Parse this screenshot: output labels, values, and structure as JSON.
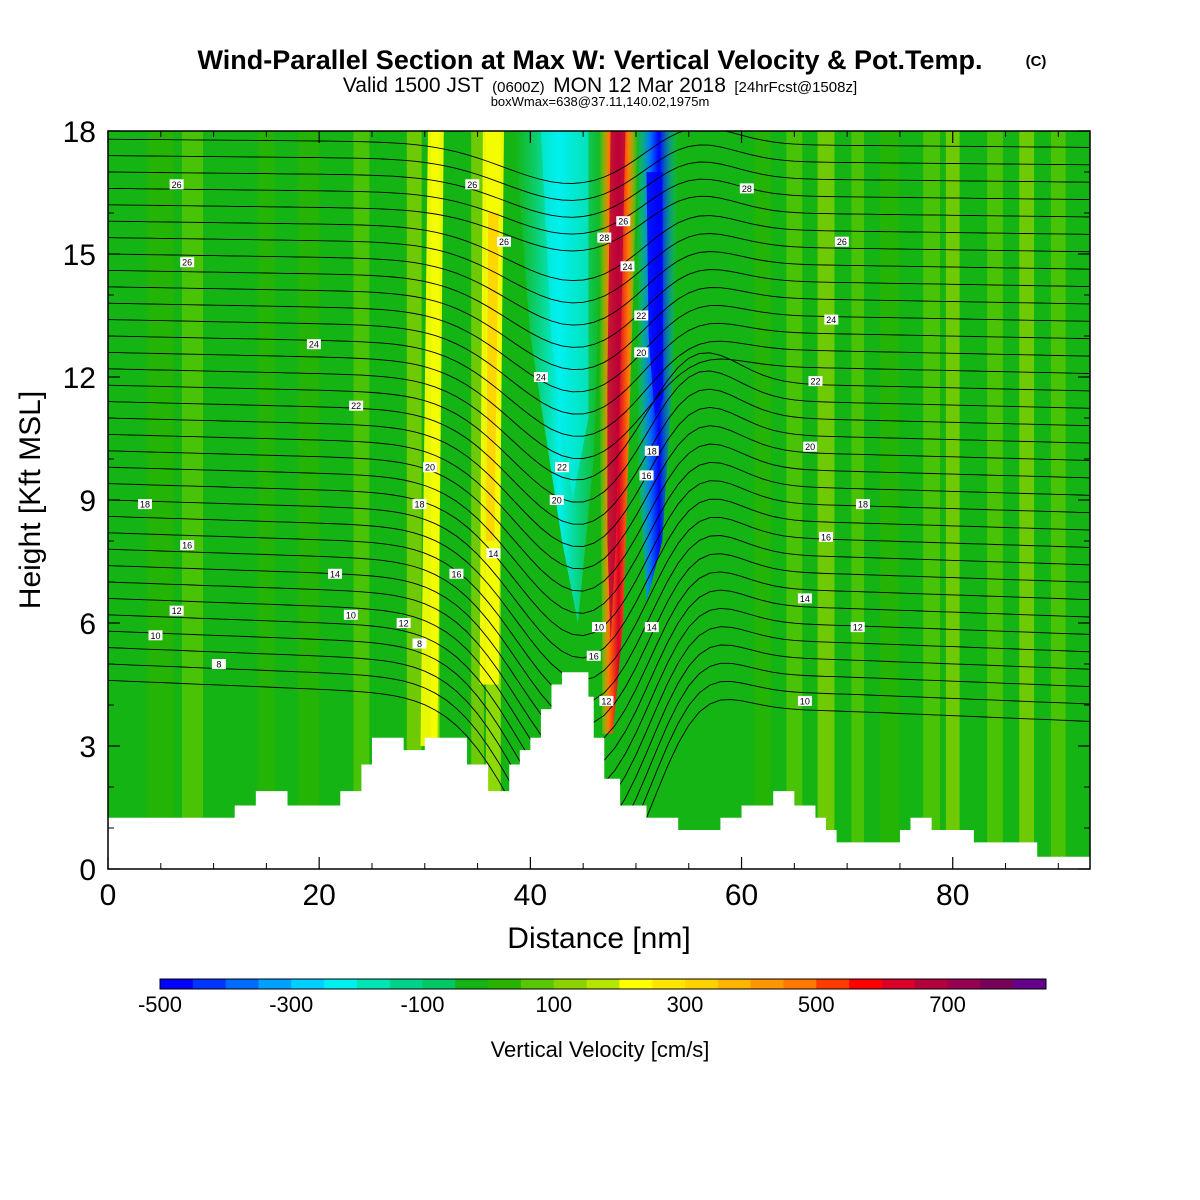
{
  "title": {
    "main": "Wind-Parallel Section at Max W: Vertical Velocity & Pot.Temp.",
    "copyright": "(C)",
    "valid_prefix": "Valid 1500 JST",
    "valid_utc": "(0600Z)",
    "valid_date": "MON 12 Mar 2018",
    "forecast": "[24hrFcst@1508z]",
    "box_max": "boxWmax=638@37.11,140.02,1975m"
  },
  "colorbar": {
    "label": "Vertical Velocity [cm/s]",
    "tick_labels": [
      "-500",
      "-300",
      "-100",
      "100",
      "300",
      "500",
      "700"
    ],
    "min": -500,
    "max": 850,
    "step": 50,
    "colors": [
      "#0000ff",
      "#0035ff",
      "#006bff",
      "#00a0ff",
      "#00d0ff",
      "#00f0f0",
      "#00e6b4",
      "#00d28c",
      "#00c864",
      "#14b414",
      "#28b400",
      "#5ac800",
      "#8cd200",
      "#b4e600",
      "#ffff00",
      "#ffe600",
      "#ffd200",
      "#ffb400",
      "#ff9600",
      "#ff7800",
      "#ff3c00",
      "#ff0000",
      "#dc0028",
      "#b4003c",
      "#960050",
      "#78005a",
      "#64008c"
    ]
  },
  "chart_data": {
    "type": "heatmap",
    "xlabel": "Distance [nm]",
    "ylabel": "Height [Kft MSL]",
    "xlim": [
      0,
      93
    ],
    "ylim": [
      0,
      18
    ],
    "x_ticks": [
      0,
      20,
      40,
      60,
      80
    ],
    "y_ticks": [
      0,
      3,
      6,
      9,
      12,
      15,
      18
    ],
    "x_tick_labels": [
      "0",
      "20",
      "40",
      "60",
      "80"
    ],
    "y_tick_labels": [
      "0",
      "3",
      "6",
      "9",
      "12",
      "15",
      "18"
    ],
    "field": "Vertical Velocity [cm/s]",
    "contour_field": "Potential Temperature",
    "max_updraft_cm_s": 638,
    "updraft_core": {
      "x_nm": 48.5,
      "z_kft_from": 4.5,
      "z_kft_to": 18
    },
    "downdraft_core": {
      "x_nm": 51.5,
      "z_kft_from": 6,
      "z_kft_to": 18
    },
    "terrain_kft": [
      [
        0,
        1.25
      ],
      [
        12,
        1.25
      ],
      [
        12,
        1.55
      ],
      [
        14,
        1.55
      ],
      [
        14,
        1.9
      ],
      [
        17,
        1.9
      ],
      [
        17,
        1.55
      ],
      [
        22,
        1.55
      ],
      [
        22,
        1.9
      ],
      [
        24,
        1.9
      ],
      [
        24,
        2.55
      ],
      [
        25,
        2.55
      ],
      [
        25,
        3.2
      ],
      [
        28,
        3.2
      ],
      [
        28,
        2.9
      ],
      [
        30,
        2.9
      ],
      [
        30,
        3.2
      ],
      [
        34,
        3.2
      ],
      [
        34,
        2.55
      ],
      [
        36,
        2.55
      ],
      [
        36,
        1.9
      ],
      [
        38,
        1.9
      ],
      [
        38,
        2.55
      ],
      [
        39,
        2.55
      ],
      [
        39,
        2.9
      ],
      [
        40,
        2.9
      ],
      [
        40,
        3.2
      ],
      [
        41,
        3.2
      ],
      [
        41,
        3.9
      ],
      [
        42,
        3.9
      ],
      [
        42,
        4.5
      ],
      [
        43,
        4.5
      ],
      [
        43,
        4.8
      ],
      [
        45.5,
        4.8
      ],
      [
        45.5,
        4.2
      ],
      [
        46,
        4.2
      ],
      [
        46,
        3.2
      ],
      [
        47,
        3.2
      ],
      [
        47,
        2.2
      ],
      [
        48.5,
        2.2
      ],
      [
        48.5,
        1.55
      ],
      [
        51,
        1.55
      ],
      [
        51,
        1.25
      ],
      [
        54,
        1.25
      ],
      [
        54,
        0.95
      ],
      [
        58,
        0.95
      ],
      [
        58,
        1.25
      ],
      [
        60,
        1.25
      ],
      [
        60,
        1.55
      ],
      [
        63,
        1.55
      ],
      [
        63,
        1.9
      ],
      [
        65,
        1.9
      ],
      [
        65,
        1.55
      ],
      [
        67,
        1.55
      ],
      [
        67,
        1.25
      ],
      [
        68,
        1.25
      ],
      [
        68,
        0.95
      ],
      [
        69,
        0.95
      ],
      [
        69,
        0.65
      ],
      [
        75,
        0.65
      ],
      [
        75,
        0.95
      ],
      [
        76,
        0.95
      ],
      [
        76,
        1.25
      ],
      [
        78,
        1.25
      ],
      [
        78,
        0.95
      ],
      [
        82,
        0.95
      ],
      [
        82,
        0.65
      ],
      [
        88,
        0.65
      ],
      [
        88,
        0.3
      ],
      [
        93,
        0.3
      ]
    ],
    "contour_labels": [
      {
        "x": 6.5,
        "z": 16.7,
        "text": "26"
      },
      {
        "x": 7.5,
        "z": 14.8,
        "text": "26"
      },
      {
        "x": 19.5,
        "z": 12.8,
        "text": "24"
      },
      {
        "x": 23.5,
        "z": 11.3,
        "text": "22"
      },
      {
        "x": 3.5,
        "z": 8.9,
        "text": "18"
      },
      {
        "x": 7.5,
        "z": 7.9,
        "text": "16"
      },
      {
        "x": 21.5,
        "z": 7.2,
        "text": "14"
      },
      {
        "x": 6.5,
        "z": 6.3,
        "text": "12"
      },
      {
        "x": 23,
        "z": 6.2,
        "text": "10"
      },
      {
        "x": 4.5,
        "z": 5.7,
        "text": "10"
      },
      {
        "x": 10.5,
        "z": 5.0,
        "text": "8"
      },
      {
        "x": 28,
        "z": 6.0,
        "text": "12"
      },
      {
        "x": 29.5,
        "z": 5.5,
        "text": "8"
      },
      {
        "x": 34.5,
        "z": 16.7,
        "text": "26"
      },
      {
        "x": 37.5,
        "z": 15.3,
        "text": "26"
      },
      {
        "x": 30.5,
        "z": 9.8,
        "text": "20"
      },
      {
        "x": 29.5,
        "z": 8.9,
        "text": "18"
      },
      {
        "x": 33,
        "z": 7.2,
        "text": "16"
      },
      {
        "x": 36.5,
        "z": 7.7,
        "text": "14"
      },
      {
        "x": 41,
        "z": 12.0,
        "text": "24"
      },
      {
        "x": 43,
        "z": 9.8,
        "text": "22"
      },
      {
        "x": 42.5,
        "z": 9.0,
        "text": "20"
      },
      {
        "x": 46.5,
        "z": 5.9,
        "text": "10"
      },
      {
        "x": 46,
        "z": 5.2,
        "text": "16"
      },
      {
        "x": 47.2,
        "z": 4.1,
        "text": "12"
      },
      {
        "x": 47,
        "z": 15.4,
        "text": "28"
      },
      {
        "x": 48.8,
        "z": 15.8,
        "text": "26"
      },
      {
        "x": 49.2,
        "z": 14.7,
        "text": "24"
      },
      {
        "x": 50.5,
        "z": 13.5,
        "text": "22"
      },
      {
        "x": 50.5,
        "z": 12.6,
        "text": "20"
      },
      {
        "x": 51.5,
        "z": 10.2,
        "text": "18"
      },
      {
        "x": 51,
        "z": 9.6,
        "text": "16"
      },
      {
        "x": 51.5,
        "z": 5.9,
        "text": "14"
      },
      {
        "x": 60.5,
        "z": 16.6,
        "text": "28"
      },
      {
        "x": 69.5,
        "z": 15.3,
        "text": "26"
      },
      {
        "x": 68.5,
        "z": 13.4,
        "text": "24"
      },
      {
        "x": 67,
        "z": 11.9,
        "text": "22"
      },
      {
        "x": 66.5,
        "z": 10.3,
        "text": "20"
      },
      {
        "x": 71.5,
        "z": 8.9,
        "text": "18"
      },
      {
        "x": 68,
        "z": 8.1,
        "text": "16"
      },
      {
        "x": 66,
        "z": 6.6,
        "text": "14"
      },
      {
        "x": 71,
        "z": 5.9,
        "text": "12"
      },
      {
        "x": 66,
        "z": 4.1,
        "text": "10"
      }
    ]
  }
}
